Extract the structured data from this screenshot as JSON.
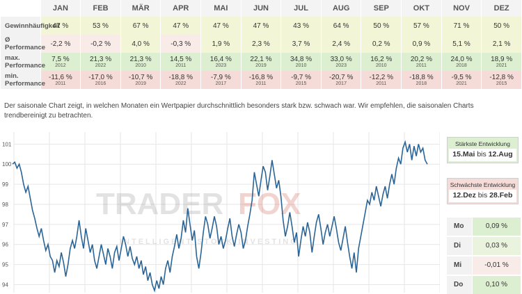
{
  "table": {
    "months": [
      "JAN",
      "FEB",
      "MÄR",
      "APR",
      "MAI",
      "JUN",
      "JUL",
      "AUG",
      "SEP",
      "OKT",
      "NOV",
      "DEZ"
    ],
    "rows": [
      {
        "label": "Gewinnhäufigkeit",
        "cells": [
          {
            "v": "47 %",
            "c": "yellow"
          },
          {
            "v": "53 %",
            "c": "yellow"
          },
          {
            "v": "67 %",
            "c": "yellow"
          },
          {
            "v": "47 %",
            "c": "yellow"
          },
          {
            "v": "47 %",
            "c": "yellow"
          },
          {
            "v": "47 %",
            "c": "yellow"
          },
          {
            "v": "43 %",
            "c": "yellow"
          },
          {
            "v": "64 %",
            "c": "yellow"
          },
          {
            "v": "50 %",
            "c": "yellow"
          },
          {
            "v": "57 %",
            "c": "yellow"
          },
          {
            "v": "71 %",
            "c": "yellow"
          },
          {
            "v": "50 %",
            "c": "yellow"
          }
        ]
      },
      {
        "label": "Ø Performance",
        "cells": [
          {
            "v": "-2,2 %",
            "c": "pink"
          },
          {
            "v": "-0,2 %",
            "c": "pink"
          },
          {
            "v": "4,0 %",
            "c": "yellow"
          },
          {
            "v": "-0,3 %",
            "c": "pink"
          },
          {
            "v": "1,9 %",
            "c": "yellow"
          },
          {
            "v": "2,3 %",
            "c": "yellow"
          },
          {
            "v": "3,7 %",
            "c": "yellow"
          },
          {
            "v": "2,4 %",
            "c": "yellow"
          },
          {
            "v": "0,2 %",
            "c": "yellow"
          },
          {
            "v": "0,9 %",
            "c": "yellow"
          },
          {
            "v": "5,1 %",
            "c": "yellow"
          },
          {
            "v": "2,1 %",
            "c": "yellow"
          }
        ]
      },
      {
        "label": "max. Performance",
        "cells": [
          {
            "v": "7,5 %",
            "y": "2012",
            "c": "green"
          },
          {
            "v": "21,3 %",
            "y": "2022",
            "c": "green"
          },
          {
            "v": "21,3 %",
            "y": "2010",
            "c": "green"
          },
          {
            "v": "14,5 %",
            "y": "2011",
            "c": "green"
          },
          {
            "v": "16,4 %",
            "y": "2023",
            "c": "green"
          },
          {
            "v": "22,1 %",
            "y": "2019",
            "c": "green"
          },
          {
            "v": "34,8 %",
            "y": "2010",
            "c": "green"
          },
          {
            "v": "33,0 %",
            "y": "2023",
            "c": "green"
          },
          {
            "v": "16,2 %",
            "y": "2010",
            "c": "green"
          },
          {
            "v": "20,2 %",
            "y": "2011",
            "c": "green"
          },
          {
            "v": "24,0 %",
            "y": "2018",
            "c": "green"
          },
          {
            "v": "18,9 %",
            "y": "2021",
            "c": "green"
          }
        ]
      },
      {
        "label": "min. Performance",
        "cells": [
          {
            "v": "-11,6 %",
            "y": "2011",
            "c": "red"
          },
          {
            "v": "-17,0 %",
            "y": "2016",
            "c": "red"
          },
          {
            "v": "-10,7 %",
            "y": "2019",
            "c": "red"
          },
          {
            "v": "-18,8 %",
            "y": "2022",
            "c": "red"
          },
          {
            "v": "-7,9 %",
            "y": "2017",
            "c": "red"
          },
          {
            "v": "-16,8 %",
            "y": "2011",
            "c": "red"
          },
          {
            "v": "-9,7 %",
            "y": "2015",
            "c": "red"
          },
          {
            "v": "-20,7 %",
            "y": "2017",
            "c": "red"
          },
          {
            "v": "-12,2 %",
            "y": "2011",
            "c": "red"
          },
          {
            "v": "-18,8 %",
            "y": "2018",
            "c": "red"
          },
          {
            "v": "-9,5 %",
            "y": "2021",
            "c": "red"
          },
          {
            "v": "-12,8 %",
            "y": "2015",
            "c": "red"
          }
        ]
      }
    ]
  },
  "description": "Der saisonale Chart zeigt, in welchen Monaten ein Wertpapier durchschnittlich besonders stark bzw. schwach war. Wir empfehlen, die saisonalen Charts trendbereinigt zu betrachten.",
  "watermark": {
    "brand_a": "TRADER",
    "brand_b": "FOX",
    "tagline": "INTELLIGENT STOCK INVESTING"
  },
  "strongest": {
    "title": "Stärkste Entwicklung",
    "from": "15.Mai",
    "mid": " bis ",
    "to": "12.Aug"
  },
  "weakest": {
    "title": "Schwächste Entwicklung",
    "from": "12.Dez",
    "mid": " bis ",
    "to": "28.Feb"
  },
  "weekdays": [
    {
      "label": "Mo",
      "value": "0,09 %",
      "color": "#dcefd0"
    },
    {
      "label": "Di",
      "value": "0,03 %",
      "color": "#eaf3dd"
    },
    {
      "label": "Mi",
      "value": "-0,01 %",
      "color": "#f9ebe7"
    },
    {
      "label": "Do",
      "value": "0,10 %",
      "color": "#dcefd0"
    }
  ],
  "colors": {
    "line": "#2a6496",
    "grid": "#e6e6e6"
  },
  "chart_data": {
    "type": "line",
    "title": "",
    "xlabel": "",
    "ylabel": "",
    "ylim": [
      93.6,
      101.6
    ],
    "yticks": [
      94,
      95,
      96,
      97,
      98,
      99,
      100,
      101
    ],
    "x_month_boundaries": 12,
    "series": [
      {
        "values": [
          100,
          100.1,
          99.8,
          100.0,
          99.6,
          99.0,
          98.6,
          98.9,
          98.3,
          97.7,
          97.3,
          96.8,
          96.4,
          96.8,
          96.2,
          95.7,
          96.0,
          95.4,
          95.2,
          94.6,
          95.2,
          94.9,
          95.6,
          95.1,
          94.4,
          95.0,
          95.8,
          96.2,
          95.8,
          96.4,
          97.2,
          96.4,
          95.8,
          96.8,
          96.2,
          95.6,
          96.0,
          95.2,
          94.8,
          95.4,
          96.0,
          95.5,
          95.0,
          95.8,
          95.4,
          94.8,
          95.6,
          95.9,
          95.2,
          95.8,
          96.4,
          96.0,
          95.4,
          95.9,
          95.3,
          95.0,
          95.4,
          94.8,
          95.2,
          94.5,
          94.9,
          94.2,
          94.6,
          94.0,
          93.7,
          94.2,
          93.8,
          94.4,
          94.0,
          94.8,
          95.2,
          94.6,
          95.4,
          95.9,
          96.5,
          95.8,
          96.3,
          97.2,
          96.6,
          97.8,
          97.0,
          96.2,
          96.7,
          95.4,
          94.8,
          95.6,
          96.6,
          97.4,
          97.0,
          96.3,
          96.8,
          97.4,
          96.9,
          96.0,
          96.4,
          95.8,
          96.2,
          96.8,
          97.3,
          96.4,
          95.9,
          96.5,
          97.0,
          96.6,
          95.8,
          96.2,
          96.9,
          97.5,
          98.2,
          99.6,
          99.0,
          98.4,
          99.2,
          99.9,
          99.6,
          98.7,
          99.4,
          100.2,
          99.5,
          98.8,
          99.2,
          98.4,
          97.2,
          96.4,
          96.9,
          97.6,
          96.9,
          96.1,
          96.6,
          95.4,
          96.2,
          96.9,
          96.4,
          97.1,
          96.6,
          95.6,
          96.4,
          97.1,
          97.5,
          96.8,
          96.0,
          96.6,
          97.0,
          96.4,
          96.9,
          97.4,
          96.8,
          96.1,
          95.7,
          96.3,
          96.9,
          96.1,
          95.4,
          94.8,
          95.6,
          94.6,
          95.8,
          96.4,
          97.0,
          97.6,
          98.2,
          98.0,
          98.6,
          98.2,
          98.9,
          98.4,
          97.9,
          98.5,
          98.9,
          98.3,
          99.0,
          99.5,
          99.0,
          99.8,
          100.3,
          100.0,
          100.8,
          101.1,
          100.6,
          101.0,
          100.2,
          100.9,
          100.4,
          101.0,
          100.6,
          100.8,
          100.2,
          100.0
        ]
      }
    ]
  }
}
